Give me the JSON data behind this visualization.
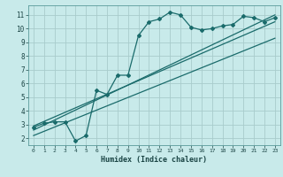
{
  "title": "",
  "xlabel": "Humidex (Indice chaleur)",
  "bg_color": "#c8eaea",
  "grid_color": "#a8cccc",
  "line_color": "#1a6b6b",
  "xlim": [
    -0.5,
    23.5
  ],
  "ylim": [
    1.5,
    11.7
  ],
  "xticks": [
    0,
    1,
    2,
    3,
    4,
    5,
    6,
    7,
    8,
    9,
    10,
    11,
    12,
    13,
    14,
    15,
    16,
    17,
    18,
    19,
    20,
    21,
    22,
    23
  ],
  "yticks": [
    2,
    3,
    4,
    5,
    6,
    7,
    8,
    9,
    10,
    11
  ],
  "curve_x": [
    0,
    1,
    2,
    3,
    4,
    5,
    6,
    7,
    8,
    9,
    10,
    11,
    12,
    13,
    14,
    15,
    16,
    17,
    18,
    19,
    20,
    21,
    22,
    23
  ],
  "curve_y": [
    2.8,
    3.1,
    3.2,
    3.2,
    1.8,
    2.2,
    5.5,
    5.2,
    6.6,
    6.6,
    9.5,
    10.5,
    10.7,
    11.2,
    11.0,
    10.1,
    9.9,
    10.0,
    10.2,
    10.3,
    10.9,
    10.8,
    10.5,
    10.8
  ],
  "line1_x": [
    0,
    23
  ],
  "line1_y": [
    2.6,
    11.0
  ],
  "line2_x": [
    0,
    23
  ],
  "line2_y": [
    2.9,
    10.5
  ],
  "line3_x": [
    0,
    23
  ],
  "line3_y": [
    2.2,
    9.3
  ]
}
